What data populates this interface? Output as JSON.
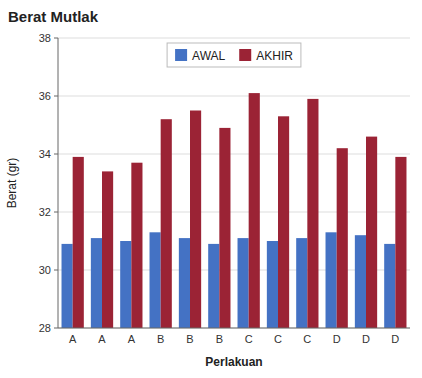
{
  "chart_data": {
    "type": "bar",
    "title": "Berat Mutlak",
    "xlabel": "Perlakuan",
    "ylabel": "Berat (gr)",
    "categories": [
      "A",
      "A",
      "A",
      "B",
      "B",
      "B",
      "C",
      "C",
      "C",
      "D",
      "D",
      "D"
    ],
    "series": [
      {
        "name": "AWAL",
        "color": "#4472C4",
        "values": [
          30.9,
          31.1,
          31.0,
          31.3,
          31.1,
          30.9,
          31.1,
          31.0,
          31.1,
          31.3,
          31.2,
          30.9
        ]
      },
      {
        "name": "AKHIR",
        "color": "#9B2335",
        "values": [
          33.9,
          33.4,
          33.7,
          35.2,
          35.5,
          34.9,
          36.1,
          35.3,
          35.9,
          34.2,
          34.6,
          33.9
        ]
      }
    ],
    "ylim": [
      28,
      38
    ],
    "yticks": [
      28,
      30,
      32,
      34,
      36,
      38
    ],
    "grid": true,
    "legend": "top"
  }
}
